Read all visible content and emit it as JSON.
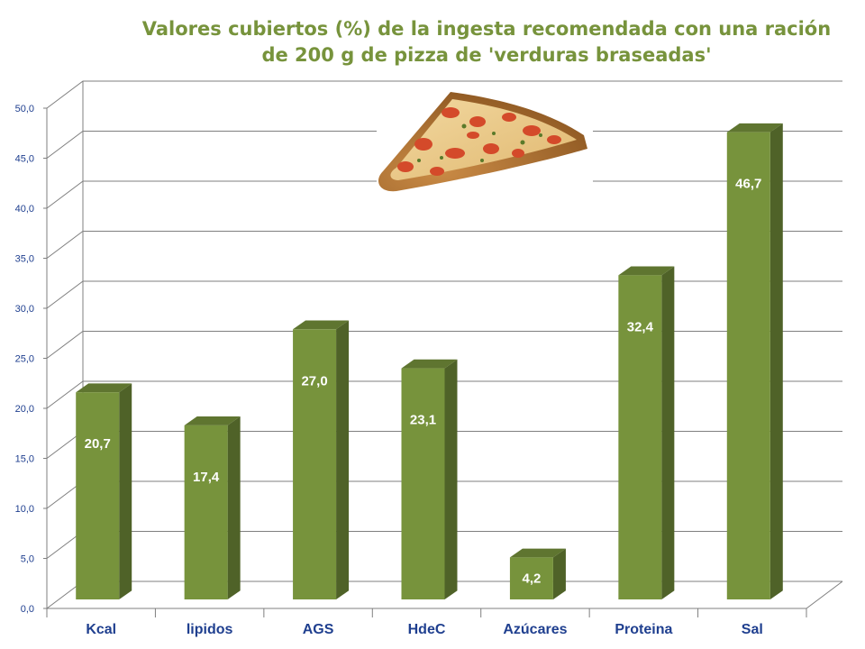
{
  "chart_data": {
    "type": "bar",
    "title": "Valores cubiertos (%) de la ingesta recomendada con una ración de 200 g de pizza de 'verduras braseadas'",
    "categories": [
      "Kcal",
      "lipidos",
      "AGS",
      "HdeC",
      "Azúcares",
      "Proteina",
      "Sal"
    ],
    "values": [
      20.7,
      17.4,
      27.0,
      23.1,
      4.2,
      32.4,
      46.7
    ],
    "value_labels": [
      "20,7",
      "17,4",
      "27,0",
      "23,1",
      "4,2",
      "32,4",
      "46,7"
    ],
    "ylim": [
      0,
      50
    ],
    "yticks": [
      0,
      5,
      10,
      15,
      20,
      25,
      30,
      35,
      40,
      45,
      50
    ],
    "ytick_labels": [
      "0,0",
      "5,0",
      "10,0",
      "15,0",
      "20,0",
      "25,0",
      "30,0",
      "35,0",
      "40,0",
      "45,0",
      "50,0"
    ],
    "xlabel": "",
    "ylabel": "",
    "grid": true,
    "legend": "none",
    "style": "3d-column",
    "colors": {
      "bar_front": "#77933c",
      "bar_side": "#4f6228",
      "bar_top": "#5f7530",
      "title": "#77933c",
      "tick_labels": "#1f3f8f",
      "grid": "#7f7f7f"
    },
    "image": "pizza-slice"
  }
}
